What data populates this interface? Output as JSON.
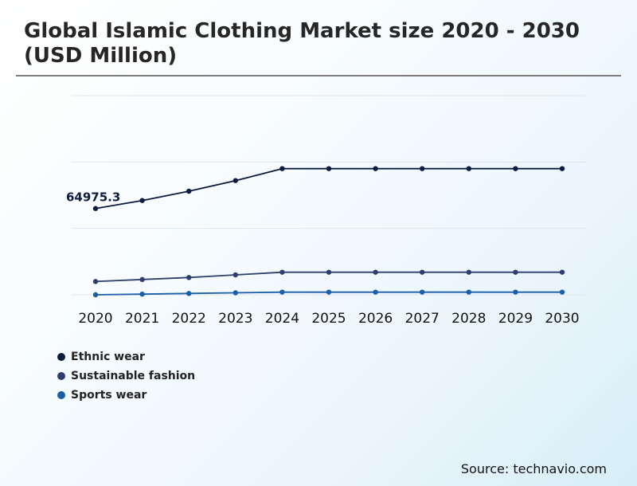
{
  "title": "Global Islamic Clothing Market size 2020 - 2030 (USD Million)",
  "source": "Source: technavio.com",
  "chart_data": {
    "type": "line",
    "title": "Global Islamic Clothing Market size 2020 - 2030 (USD Million)",
    "xlabel": "",
    "ylabel": "",
    "categories": [
      "2020",
      "2021",
      "2022",
      "2023",
      "2024",
      "2025",
      "2026",
      "2027",
      "2028",
      "2029",
      "2030"
    ],
    "ylim": [
      0,
      150000
    ],
    "grid": true,
    "legend_position": "bottom-left",
    "annotations": [
      {
        "text": "64975.3",
        "series": "Ethnic wear",
        "category": "2020"
      }
    ],
    "series": [
      {
        "name": "Ethnic wear",
        "color": "#0d1b3e",
        "values": [
          64975.3,
          71000,
          78000,
          86000,
          95000,
          95000,
          95000,
          95000,
          95000,
          95000,
          95000
        ]
      },
      {
        "name": "Sustainable fashion",
        "color": "#2e3f6e",
        "values": [
          10000,
          11500,
          13000,
          15000,
          17000,
          17000,
          17000,
          17000,
          17000,
          17000,
          17000
        ]
      },
      {
        "name": "Sports wear",
        "color": "#1a5fa8",
        "values": [
          0,
          500,
          1000,
          1500,
          2000,
          2000,
          2000,
          2000,
          2000,
          2000,
          2000
        ]
      }
    ]
  }
}
